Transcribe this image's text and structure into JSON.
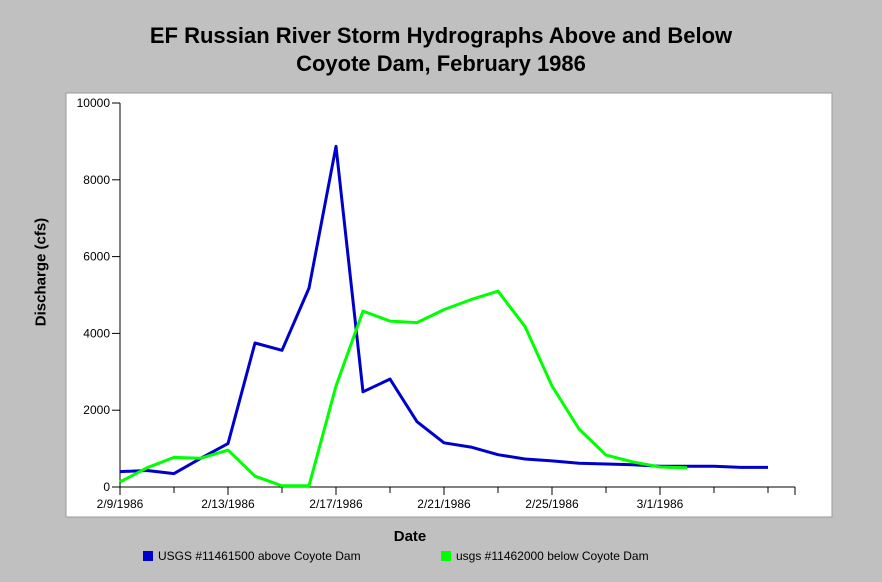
{
  "chart_data": {
    "type": "line",
    "title": [
      "EF Russian River Storm Hydrographs Above and Below",
      "Coyote Dam, February 1986"
    ],
    "xlabel": "Date",
    "ylabel": "Discharge (cfs)",
    "ylim": [
      0,
      10000
    ],
    "yticks": [
      0,
      2000,
      4000,
      6000,
      8000,
      10000
    ],
    "xlim": [
      "1986-02-09",
      "1986-03-06"
    ],
    "xtick_labels": [
      "2/9/1986",
      "2/13/1986",
      "2/17/1986",
      "2/21/1986",
      "2/25/1986",
      "3/1/1986"
    ],
    "xtick_dates": [
      "1986-02-09",
      "1986-02-13",
      "1986-02-17",
      "1986-02-21",
      "1986-02-25",
      "1986-03-01"
    ],
    "legend_position": "bottom",
    "series": [
      {
        "name": "USGS #11461500 above Coyote Dam",
        "color": "#0000cc",
        "x": [
          "1986-02-09",
          "1986-02-10",
          "1986-02-11",
          "1986-02-12",
          "1986-02-13",
          "1986-02-14",
          "1986-02-15",
          "1986-02-16",
          "1986-02-17",
          "1986-02-18",
          "1986-02-19",
          "1986-02-20",
          "1986-02-21",
          "1986-02-22",
          "1986-02-23",
          "1986-02-24",
          "1986-02-25",
          "1986-02-26",
          "1986-02-27",
          "1986-02-28",
          "1986-03-01",
          "1986-03-02",
          "1986-03-03",
          "1986-03-04",
          "1986-03-05"
        ],
        "y": [
          400,
          430,
          350,
          750,
          1130,
          3750,
          3560,
          5180,
          8870,
          2480,
          2810,
          1700,
          1150,
          1040,
          840,
          730,
          680,
          620,
          600,
          580,
          540,
          540,
          540,
          510,
          510
        ]
      },
      {
        "name": "usgs #11462000 below Coyote Dam",
        "color": "#00ff00",
        "x": [
          "1986-02-09",
          "1986-02-10",
          "1986-02-11",
          "1986-02-12",
          "1986-02-13",
          "1986-02-14",
          "1986-02-15",
          "1986-02-16",
          "1986-02-17",
          "1986-02-18",
          "1986-02-19",
          "1986-02-20",
          "1986-02-21",
          "1986-02-22",
          "1986-02-23",
          "1986-02-24",
          "1986-02-25",
          "1986-02-26",
          "1986-02-27",
          "1986-02-28",
          "1986-03-01",
          "1986-03-02"
        ],
        "y": [
          130,
          500,
          770,
          750,
          960,
          280,
          30,
          30,
          2630,
          4580,
          4320,
          4280,
          4620,
          4880,
          5100,
          4180,
          2630,
          1510,
          830,
          650,
          520,
          500
        ]
      }
    ]
  }
}
